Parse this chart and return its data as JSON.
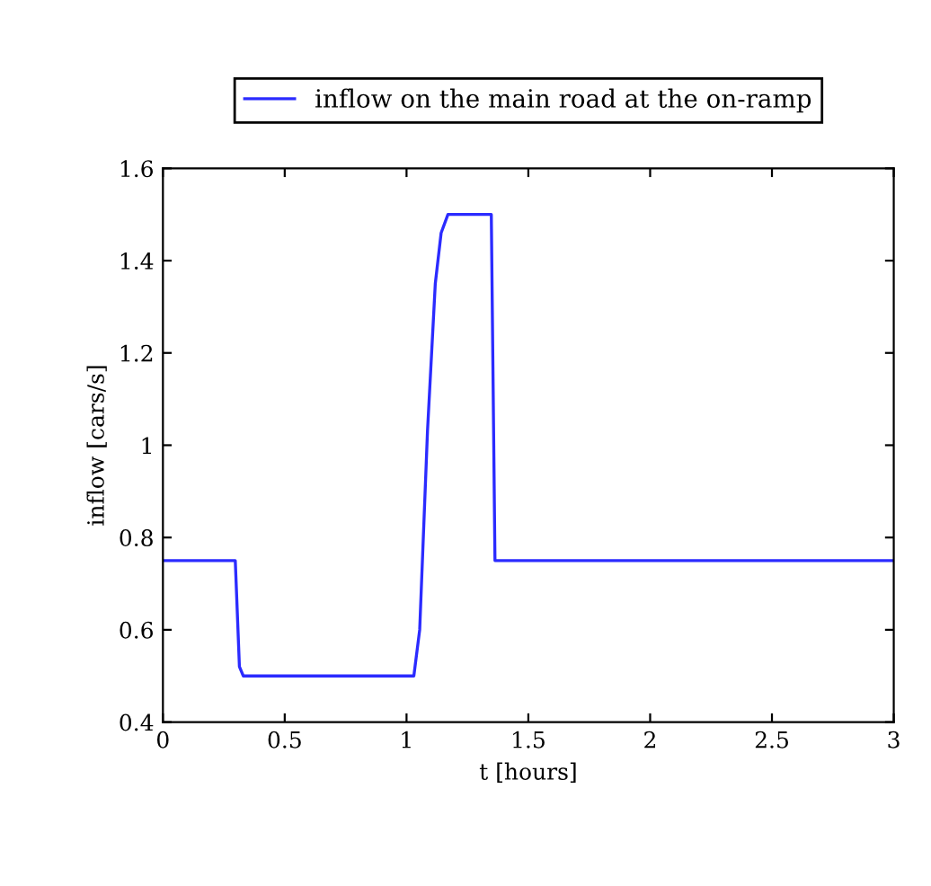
{
  "chart_data": {
    "type": "line",
    "xlabel": "t [hours]",
    "ylabel": "inflow [cars/s]",
    "x": [
      0,
      0.297,
      0.314,
      0.33,
      1.03,
      1.054,
      1.086,
      1.118,
      1.142,
      1.17,
      1.348,
      1.363,
      3
    ],
    "series": [
      {
        "name": "inflow on the main road at the on-ramp",
        "color": "#2b2bff",
        "values": [
          0.75,
          0.75,
          0.52,
          0.5,
          0.5,
          0.6,
          1.03,
          1.35,
          1.46,
          1.5,
          1.5,
          0.75,
          0.75
        ]
      }
    ],
    "xlim": [
      0,
      3
    ],
    "ylim": [
      0.4,
      1.6
    ],
    "xticks": [
      0,
      0.5,
      1,
      1.5,
      2,
      2.5,
      3
    ],
    "yticks": [
      0.4,
      0.6,
      0.8,
      1,
      1.2,
      1.4,
      1.6
    ],
    "grid": false,
    "legend": "top",
    "line_style": "solid",
    "marker": "none"
  }
}
